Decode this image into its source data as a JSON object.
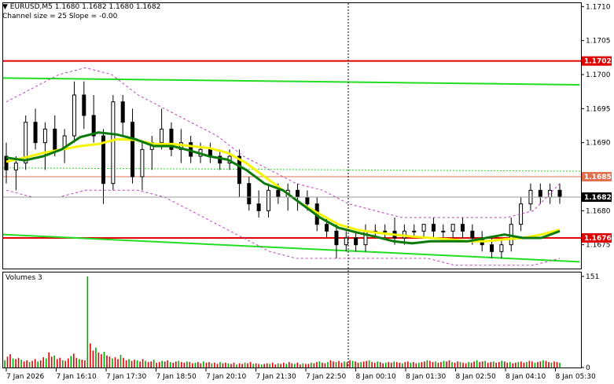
{
  "header": {
    "symbol_line": "EURUSD,M5  1.1680 1.1682 1.1680 1.1682",
    "channel_line": "Channel size = 25 Slope = -0.00"
  },
  "volume_panel": {
    "title": "Volumes 3"
  },
  "colors": {
    "bull": "#000000",
    "bear": "#000000",
    "ma_fast": "#0a7a0a",
    "ma_slow": "#f5f500",
    "channel": "#c040c0",
    "level_red": "#e00000",
    "level_green": "#22dd22",
    "volume_up": "#00aa00",
    "volume_down": "#e00000"
  },
  "chart_data": [
    {
      "type": "candlestick",
      "title": "EURUSD,M5",
      "ylim": [
        1.16715,
        1.17105
      ],
      "y_ticks": [
        "1.1710",
        "1.1705",
        "1.1700",
        "1.1695",
        "1.1690",
        "1.1685",
        "1.1680",
        "1.1675"
      ],
      "x_ticks": [
        "7 Jan 2026",
        "7 Jan 16:10",
        "7 Jan 17:30",
        "7 Jan 18:50",
        "7 Jan 20:10",
        "7 Jan 21:30",
        "7 Jan 22:50",
        "8 Jan 00:10",
        "8 Jan 01:30",
        "8 Jan 02:50",
        "8 Jan 04:10",
        "8 Jan 05:30"
      ],
      "horizontal_levels": [
        {
          "label": "1.1702",
          "value": 1.1702,
          "color": "#e00000"
        },
        {
          "label": "1.1685",
          "value": 1.1685,
          "color": "#e07050"
        },
        {
          "label": "1.1676",
          "value": 1.1676,
          "color": "#e00000"
        }
      ],
      "trend_lines": [
        {
          "color": "#22dd22",
          "from": 1.16995,
          "to": 1.16985
        },
        {
          "color": "#22dd22",
          "from": 1.16765,
          "to": 1.16725
        }
      ],
      "last_price": "1.1682",
      "moving_averages": {
        "fast": [
          1.16878,
          1.16874,
          1.1688,
          1.1689,
          1.16908,
          1.16915,
          1.16912,
          1.16905,
          1.16895,
          1.16895,
          1.16888,
          1.1688,
          1.16875,
          1.1686,
          1.1684,
          1.1683,
          1.1681,
          1.1679,
          1.16775,
          1.16768,
          1.16762,
          1.16755,
          1.16752,
          1.16755,
          1.16755,
          1.16755,
          1.1676,
          1.16765,
          1.1676,
          1.1676,
          1.1677
        ],
        "slow": [
          1.16872,
          1.16878,
          1.16885,
          1.1689,
          1.16895,
          1.16898,
          1.16905,
          1.16904,
          1.16898,
          1.16898,
          1.16895,
          1.16892,
          1.16885,
          1.1687,
          1.1685,
          1.1683,
          1.1681,
          1.16795,
          1.1678,
          1.16772,
          1.16768,
          1.16765,
          1.16762,
          1.1676,
          1.16758,
          1.16755,
          1.16755,
          1.16758,
          1.1676,
          1.16765,
          1.16772
        ]
      },
      "candles_ohlc": [
        [
          1.1688,
          1.169,
          1.1684,
          1.1686
        ],
        [
          1.1686,
          1.1688,
          1.1683,
          1.1687
        ],
        [
          1.1687,
          1.1694,
          1.1686,
          1.1693
        ],
        [
          1.1693,
          1.1695,
          1.1689,
          1.169
        ],
        [
          1.169,
          1.1693,
          1.1686,
          1.1692
        ],
        [
          1.1692,
          1.1694,
          1.1688,
          1.1689
        ],
        [
          1.1689,
          1.1692,
          1.1687,
          1.1691
        ],
        [
          1.1691,
          1.1699,
          1.169,
          1.1697
        ],
        [
          1.1697,
          1.1699,
          1.1692,
          1.1694
        ],
        [
          1.1694,
          1.1697,
          1.169,
          1.1691
        ],
        [
          1.1691,
          1.1692,
          1.1681,
          1.1684
        ],
        [
          1.1684,
          1.1697,
          1.1683,
          1.1696
        ],
        [
          1.1696,
          1.1697,
          1.1691,
          1.1693
        ],
        [
          1.1693,
          1.1695,
          1.1684,
          1.1685
        ],
        [
          1.1685,
          1.169,
          1.1683,
          1.1689
        ],
        [
          1.1689,
          1.1691,
          1.1686,
          1.169
        ],
        [
          1.169,
          1.1695,
          1.1689,
          1.1692
        ],
        [
          1.1692,
          1.1693,
          1.1688,
          1.1689
        ],
        [
          1.1689,
          1.1692,
          1.1687,
          1.169
        ],
        [
          1.169,
          1.1691,
          1.1687,
          1.1688
        ],
        [
          1.1688,
          1.169,
          1.1687,
          1.1689
        ],
        [
          1.1689,
          1.169,
          1.1687,
          1.1688
        ],
        [
          1.1688,
          1.1689,
          1.1686,
          1.1687
        ],
        [
          1.1687,
          1.1689,
          1.1686,
          1.1688
        ],
        [
          1.1688,
          1.1689,
          1.1682,
          1.1684
        ],
        [
          1.1684,
          1.1685,
          1.168,
          1.1681
        ],
        [
          1.1681,
          1.1683,
          1.1679,
          1.168
        ],
        [
          1.168,
          1.1684,
          1.1679,
          1.1683
        ],
        [
          1.1683,
          1.1684,
          1.1681,
          1.1682
        ],
        [
          1.1682,
          1.1684,
          1.168,
          1.1683
        ],
        [
          1.1683,
          1.1684,
          1.168,
          1.1682
        ],
        [
          1.1682,
          1.1683,
          1.168,
          1.1681
        ],
        [
          1.1681,
          1.1682,
          1.1677,
          1.1678
        ],
        [
          1.1678,
          1.1679,
          1.1676,
          1.1677
        ],
        [
          1.1677,
          1.1678,
          1.1673,
          1.1675
        ],
        [
          1.1675,
          1.1677,
          1.1674,
          1.1676
        ],
        [
          1.1676,
          1.1677,
          1.1674,
          1.1675
        ],
        [
          1.1675,
          1.1678,
          1.1674,
          1.1677
        ],
        [
          1.1677,
          1.1678,
          1.1676,
          1.1677
        ],
        [
          1.1677,
          1.1678,
          1.1676,
          1.1677
        ],
        [
          1.1677,
          1.1679,
          1.1675,
          1.1676
        ],
        [
          1.1676,
          1.1678,
          1.1675,
          1.1677
        ],
        [
          1.1677,
          1.1678,
          1.1676,
          1.1677
        ],
        [
          1.1677,
          1.1678,
          1.1676,
          1.1678
        ],
        [
          1.1678,
          1.1679,
          1.1676,
          1.1677
        ],
        [
          1.1677,
          1.1678,
          1.1676,
          1.1677
        ],
        [
          1.1677,
          1.1678,
          1.1676,
          1.1678
        ],
        [
          1.1678,
          1.1679,
          1.1676,
          1.1677
        ],
        [
          1.1677,
          1.1678,
          1.1675,
          1.1676
        ],
        [
          1.1676,
          1.1677,
          1.1674,
          1.1675
        ],
        [
          1.1675,
          1.1676,
          1.1673,
          1.1674
        ],
        [
          1.1674,
          1.1676,
          1.1673,
          1.1675
        ],
        [
          1.1675,
          1.1679,
          1.1674,
          1.1678
        ],
        [
          1.1678,
          1.1682,
          1.1677,
          1.1681
        ],
        [
          1.1681,
          1.1684,
          1.168,
          1.1683
        ],
        [
          1.1683,
          1.1684,
          1.1681,
          1.1682
        ],
        [
          1.1682,
          1.1684,
          1.1681,
          1.1683
        ],
        [
          1.1683,
          1.1684,
          1.1681,
          1.1682
        ]
      ],
      "channel_upper": [
        1.1696,
        1.1698,
        1.17,
        1.1701,
        1.17,
        1.1697,
        1.1695,
        1.1693,
        1.1691,
        1.1688,
        1.1686,
        1.1684,
        1.1683,
        1.1681,
        1.168,
        1.1679,
        1.1679,
        1.1679,
        1.1679,
        1.1679,
        1.168,
        1.1684
      ],
      "channel_lower": [
        1.1683,
        1.1682,
        1.1682,
        1.1683,
        1.1683,
        1.1683,
        1.1682,
        1.168,
        1.1678,
        1.1676,
        1.1674,
        1.1673,
        1.1673,
        1.1673,
        1.1673,
        1.1673,
        1.1673,
        1.1672,
        1.1672,
        1.1672,
        1.1672,
        1.1673
      ]
    },
    {
      "type": "bar",
      "title": "Volumes 3",
      "y_ticks": [
        "151",
        "0"
      ],
      "ylim": [
        0,
        151
      ],
      "values": [
        12,
        18,
        22,
        15,
        14,
        16,
        13,
        10,
        12,
        9,
        11,
        14,
        10,
        12,
        17,
        15,
        25,
        18,
        20,
        14,
        16,
        12,
        11,
        15,
        19,
        23,
        16,
        14,
        13,
        12,
        151,
        40,
        28,
        33,
        25,
        22,
        26,
        20,
        18,
        15,
        17,
        14,
        21,
        16,
        12,
        14,
        11,
        13,
        12,
        10,
        14,
        11,
        9,
        10,
        13,
        8,
        9,
        11,
        10,
        12,
        9,
        8,
        10,
        11,
        9,
        8,
        10,
        9,
        7,
        8,
        9,
        7,
        10,
        8,
        9,
        7,
        8,
        6,
        9,
        7,
        8,
        7,
        6,
        8,
        5,
        7,
        6,
        8,
        7,
        9,
        6,
        7,
        6,
        5,
        6,
        7,
        6,
        8,
        5,
        7,
        6,
        8,
        6,
        9,
        7,
        6,
        8,
        5,
        7,
        6,
        6,
        8,
        7,
        9,
        10,
        8,
        7,
        9,
        12,
        10,
        9,
        11,
        8,
        10,
        9,
        12,
        11,
        10,
        8,
        9,
        10,
        11,
        12,
        9,
        8,
        10,
        9,
        7,
        8,
        9,
        8,
        10,
        9,
        8,
        7,
        9,
        10,
        8,
        9,
        7,
        8,
        9,
        10,
        12,
        11,
        9,
        10,
        8,
        9,
        11,
        10,
        12,
        9,
        8,
        10,
        9,
        8,
        7,
        9,
        8,
        10,
        12,
        9,
        10,
        11,
        8,
        9,
        10,
        8,
        9,
        11,
        10,
        8,
        9,
        7,
        8,
        9,
        10,
        8,
        9,
        11,
        10,
        8,
        9,
        10,
        12,
        11,
        9,
        8,
        10,
        9,
        8
      ]
    }
  ]
}
